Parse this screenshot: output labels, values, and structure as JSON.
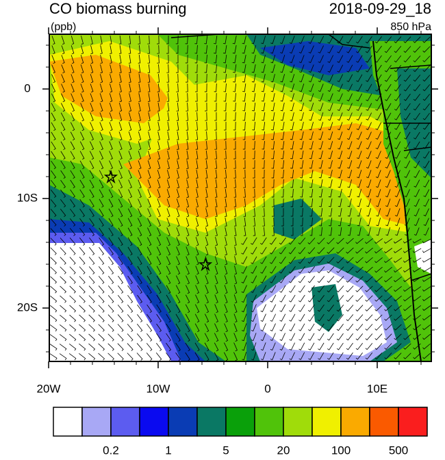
{
  "title": "CO biomass burning",
  "units": "(ppb)",
  "date": "2018-09-29_18",
  "level": "850 hPa",
  "lat_ticks": [
    {
      "value": 0,
      "label": "0"
    },
    {
      "value": -10,
      "label": "10S"
    },
    {
      "value": -20,
      "label": "20S"
    }
  ],
  "lon_ticks": [
    {
      "value": -20,
      "label": "20W"
    },
    {
      "value": -10,
      "label": "10W"
    },
    {
      "value": 0,
      "label": "0"
    },
    {
      "value": 10,
      "label": "10E"
    }
  ],
  "colorbar": {
    "colors": [
      "#ffffff",
      "#a8a8f5",
      "#5c5cf0",
      "#0a0af0",
      "#0a3cb4",
      "#0a7864",
      "#0aa00a",
      "#50c30a",
      "#a0dc0a",
      "#f0f000",
      "#faaa00",
      "#fa5a00",
      "#fa1e1e"
    ],
    "labels": [
      "0.2",
      "1",
      "5",
      "20",
      "100",
      "500"
    ]
  }
}
